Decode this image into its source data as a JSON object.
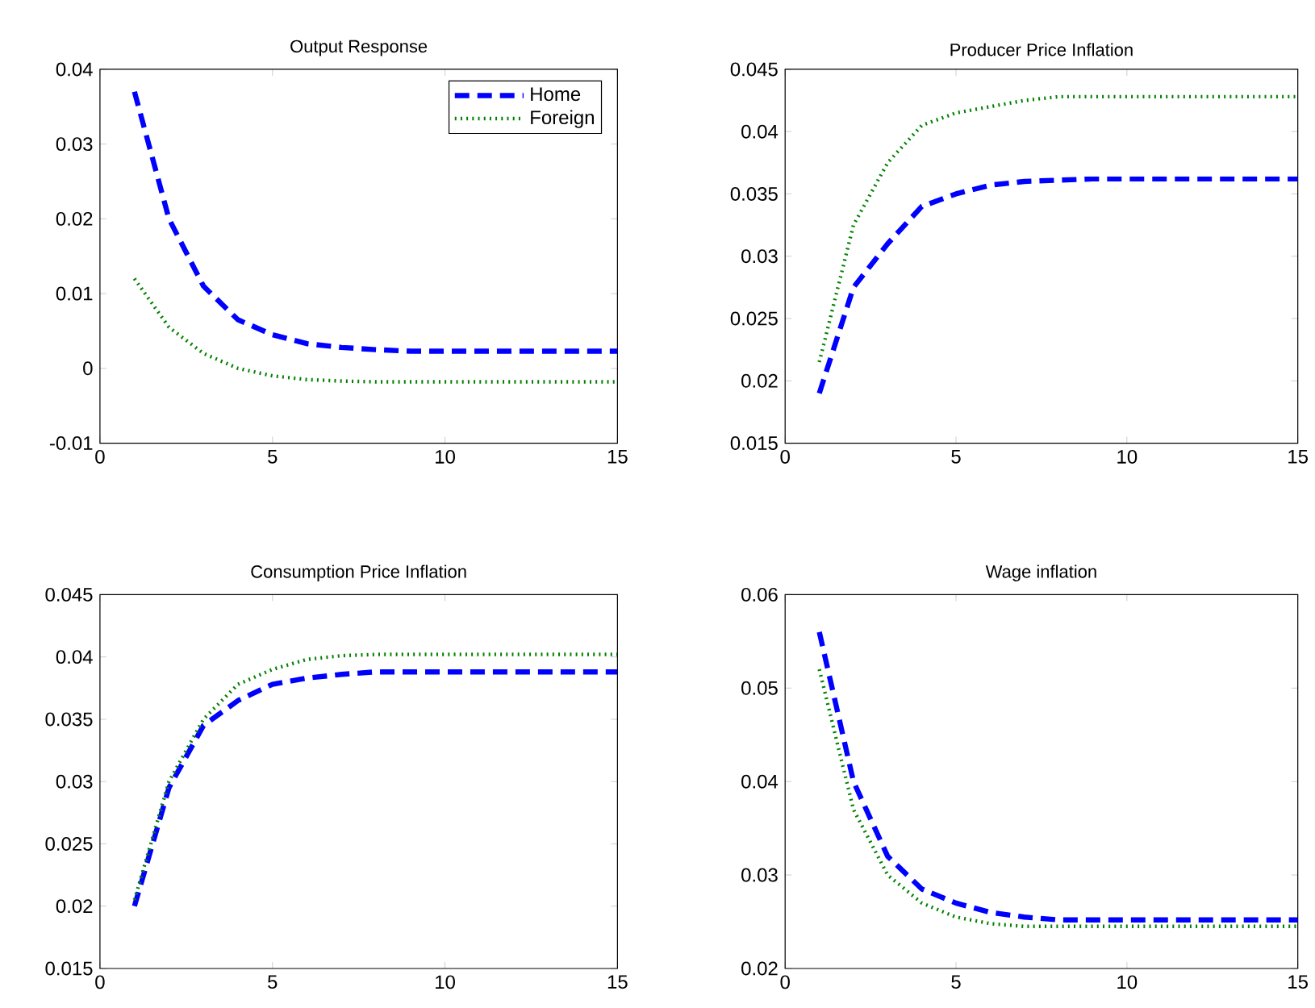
{
  "chart_data": [
    {
      "type": "line",
      "title": "Output Response",
      "x": [
        1,
        2,
        3,
        4,
        5,
        6,
        7,
        8,
        9,
        10,
        11,
        12,
        13,
        14,
        15
      ],
      "xlim": [
        0,
        15
      ],
      "xticks": [
        0,
        5,
        10,
        15
      ],
      "ylim": [
        -0.01,
        0.04
      ],
      "yticks": [
        -0.01,
        0,
        0.01,
        0.02,
        0.03,
        0.04
      ],
      "legend": "top right",
      "series": [
        {
          "name": "Home",
          "color": "#0000ff",
          "line_style": "dashed",
          "values": [
            0.037,
            0.02,
            0.011,
            0.0065,
            0.0045,
            0.0033,
            0.0028,
            0.0025,
            0.0023,
            0.0023,
            0.0023,
            0.0023,
            0.0023,
            0.0023,
            0.0023
          ]
        },
        {
          "name": "Foreign",
          "color": "#008000",
          "line_style": "dotted",
          "values": [
            0.012,
            0.0055,
            0.002,
            0.0,
            -0.001,
            -0.0015,
            -0.0017,
            -0.0018,
            -0.0018,
            -0.0018,
            -0.0018,
            -0.0018,
            -0.0018,
            -0.0018,
            -0.0018
          ]
        }
      ]
    },
    {
      "type": "line",
      "title": "Producer Price Inflation",
      "x": [
        1,
        2,
        3,
        4,
        5,
        6,
        7,
        8,
        9,
        10,
        11,
        12,
        13,
        14,
        15
      ],
      "xlim": [
        0,
        15
      ],
      "xticks": [
        0,
        5,
        10,
        15
      ],
      "ylim": [
        0.015,
        0.045
      ],
      "yticks": [
        0.015,
        0.02,
        0.025,
        0.03,
        0.035,
        0.04,
        0.045
      ],
      "series": [
        {
          "color": "#0000ff",
          "line_style": "dashed",
          "values": [
            0.019,
            0.0275,
            0.031,
            0.034,
            0.035,
            0.0357,
            0.036,
            0.0361,
            0.0362,
            0.0362,
            0.0362,
            0.0362,
            0.0362,
            0.0362,
            0.0362
          ]
        },
        {
          "color": "#008000",
          "line_style": "dotted",
          "values": [
            0.0215,
            0.0325,
            0.0375,
            0.0405,
            0.0415,
            0.042,
            0.0425,
            0.0428,
            0.0428,
            0.0428,
            0.0428,
            0.0428,
            0.0428,
            0.0428,
            0.0428
          ]
        }
      ]
    },
    {
      "type": "line",
      "title": "Consumption Price Inflation",
      "x": [
        1,
        2,
        3,
        4,
        5,
        6,
        7,
        8,
        9,
        10,
        11,
        12,
        13,
        14,
        15
      ],
      "xlim": [
        0,
        15
      ],
      "xticks": [
        0,
        5,
        10,
        15
      ],
      "ylim": [
        0.015,
        0.045
      ],
      "yticks": [
        0.015,
        0.02,
        0.025,
        0.03,
        0.035,
        0.04,
        0.045
      ],
      "series": [
        {
          "color": "#0000ff",
          "line_style": "dashed",
          "values": [
            0.02,
            0.0295,
            0.0345,
            0.0365,
            0.0378,
            0.0383,
            0.0386,
            0.0388,
            0.0388,
            0.0388,
            0.0388,
            0.0388,
            0.0388,
            0.0388,
            0.0388
          ]
        },
        {
          "color": "#008000",
          "line_style": "dotted",
          "values": [
            0.0205,
            0.03,
            0.035,
            0.0378,
            0.039,
            0.0398,
            0.0401,
            0.0402,
            0.0402,
            0.0402,
            0.0402,
            0.0402,
            0.0402,
            0.0402,
            0.0402
          ]
        }
      ]
    },
    {
      "type": "line",
      "title": "Wage inflation",
      "x": [
        1,
        2,
        3,
        4,
        5,
        6,
        7,
        8,
        9,
        10,
        11,
        12,
        13,
        14,
        15
      ],
      "xlim": [
        0,
        15
      ],
      "xticks": [
        0,
        5,
        10,
        15
      ],
      "ylim": [
        0.02,
        0.06
      ],
      "yticks": [
        0.02,
        0.03,
        0.04,
        0.05,
        0.06
      ],
      "series": [
        {
          "color": "#0000ff",
          "line_style": "dashed",
          "values": [
            0.056,
            0.04,
            0.032,
            0.0285,
            0.027,
            0.026,
            0.0255,
            0.0252,
            0.0252,
            0.0252,
            0.0252,
            0.0252,
            0.0252,
            0.0252,
            0.0252
          ]
        },
        {
          "color": "#008000",
          "line_style": "dotted",
          "values": [
            0.052,
            0.037,
            0.03,
            0.027,
            0.0255,
            0.0248,
            0.0245,
            0.0245,
            0.0245,
            0.0245,
            0.0245,
            0.0245,
            0.0245,
            0.0245,
            0.0245
          ]
        }
      ]
    }
  ]
}
